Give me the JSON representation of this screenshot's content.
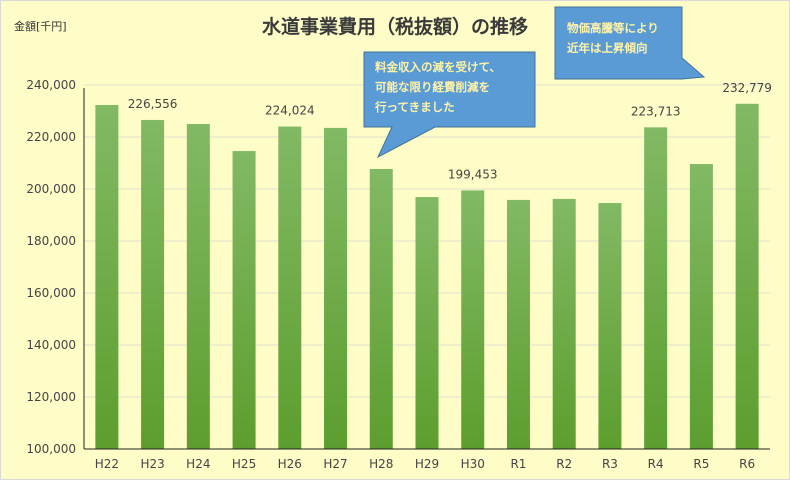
{
  "chart_data": {
    "type": "bar",
    "title": "水道事業費用（税抜額）の推移",
    "ylabel": "金額[千円]",
    "xlabel": "",
    "ylim": [
      100000,
      250000
    ],
    "yticks": [
      100000,
      120000,
      140000,
      160000,
      180000,
      200000,
      220000,
      240000
    ],
    "ytick_labels": [
      "100,000",
      "120,000",
      "140,000",
      "160,000",
      "180,000",
      "200,000",
      "220,000",
      "240,000"
    ],
    "grid": true,
    "categories": [
      "H22",
      "H23",
      "H24",
      "H25",
      "H26",
      "H27",
      "H28",
      "H29",
      "H30",
      "R1",
      "R2",
      "R3",
      "R4",
      "R5",
      "R6"
    ],
    "values": [
      232300,
      226556,
      225000,
      214600,
      224024,
      223500,
      207700,
      196900,
      199453,
      195800,
      196200,
      194600,
      223713,
      209600,
      232779
    ],
    "data_labels": {
      "1": "226,556",
      "4": "224,024",
      "8": "199,453",
      "12": "223,713",
      "14": "232,779"
    },
    "bar_color": "#70ad47",
    "annotations": [
      {
        "lines": [
          "料金収入の減を受けて、",
          "可能な限り経費削減を",
          "行ってきました"
        ],
        "color": "#5b9bd5"
      },
      {
        "lines": [
          "物価高騰等により",
          "近年は上昇傾向"
        ],
        "color": "#5b9bd5"
      }
    ]
  }
}
